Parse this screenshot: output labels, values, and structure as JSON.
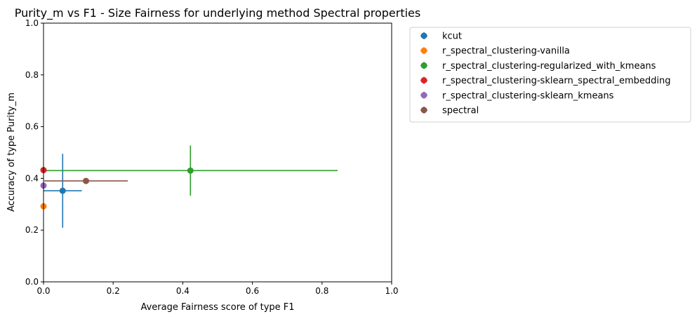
{
  "chart_data": {
    "type": "scatter",
    "title": "Purity_m vs F1 - Size Fairness for underlying method Spectral properties",
    "xlabel": "Average Fairness score of type F1",
    "ylabel": "Accuracy of type Purity_m",
    "xlim": [
      0,
      1
    ],
    "ylim": [
      0,
      1
    ],
    "xticks": [
      0.0,
      0.2,
      0.4,
      0.6,
      0.8,
      1.0
    ],
    "yticks": [
      0.0,
      0.2,
      0.4,
      0.6,
      0.8,
      1.0
    ],
    "xtick_labels": [
      "0.0",
      "0.2",
      "0.4",
      "0.6",
      "0.8",
      "1.0"
    ],
    "ytick_labels": [
      "0.0",
      "0.2",
      "0.4",
      "0.6",
      "0.8",
      "1.0"
    ],
    "grid": false,
    "legend_position": "outside-top-right",
    "series": [
      {
        "name": "kcut",
        "color": "#1f77b4",
        "x": 0.055,
        "y": 0.352,
        "xerr": 0.055,
        "yerr": 0.143
      },
      {
        "name": "r_spectral_clustering-vanilla",
        "color": "#ff7f0e",
        "x": 0.0,
        "y": 0.292,
        "xerr": 0,
        "yerr": 0
      },
      {
        "name": "r_spectral_clustering-regularized_with_kmeans",
        "color": "#2ca02c",
        "x": 0.422,
        "y": 0.43,
        "xerr": 0.423,
        "yerr": 0.097
      },
      {
        "name": "r_spectral_clustering-sklearn_spectral_embedding",
        "color": "#d62728",
        "x": 0.0,
        "y": 0.432,
        "xerr": 0,
        "yerr": 0
      },
      {
        "name": "r_spectral_clustering-sklearn_kmeans",
        "color": "#9467bd",
        "x": 0.0,
        "y": 0.372,
        "xerr": 0,
        "yerr": 0
      },
      {
        "name": "spectral",
        "color": "#8c564b",
        "x": 0.122,
        "y": 0.39,
        "xerr": 0.12,
        "yerr": 0
      }
    ]
  }
}
